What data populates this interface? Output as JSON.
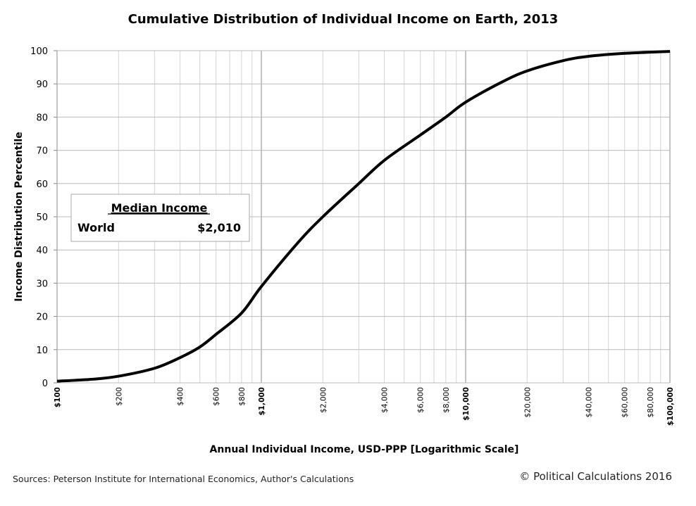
{
  "chart_data": {
    "type": "line",
    "title": "Cumulative Distribution of Individual Income on Earth, 2013",
    "xlabel": "Annual Individual Income, USD-PPP [Logarithmic Scale]",
    "ylabel": "Income Distribution Percentile",
    "x_scale": "log",
    "xlim": [
      100,
      100000
    ],
    "ylim": [
      0,
      100
    ],
    "grid": true,
    "y_ticks": [
      0,
      10,
      20,
      30,
      40,
      50,
      60,
      70,
      80,
      90,
      100
    ],
    "x_ticks": [
      {
        "value": 100,
        "label": "$100",
        "major": true
      },
      {
        "value": 200,
        "label": "$200"
      },
      {
        "value": 400,
        "label": "$400"
      },
      {
        "value": 600,
        "label": "$600"
      },
      {
        "value": 800,
        "label": "$800"
      },
      {
        "value": 1000,
        "label": "$1,000",
        "major": true
      },
      {
        "value": 2000,
        "label": "$2,000"
      },
      {
        "value": 4000,
        "label": "$4,000"
      },
      {
        "value": 6000,
        "label": "$6,000"
      },
      {
        "value": 8000,
        "label": "$8,000"
      },
      {
        "value": 10000,
        "label": "$10,000",
        "major": true
      },
      {
        "value": 20000,
        "label": "$20,000"
      },
      {
        "value": 40000,
        "label": "$40,000"
      },
      {
        "value": 60000,
        "label": "$60,000"
      },
      {
        "value": 80000,
        "label": "$80,000"
      },
      {
        "value": 100000,
        "label": "$100,000",
        "major": true
      }
    ],
    "series": [
      {
        "x": [
          100,
          150,
          200,
          300,
          400,
          500,
          600,
          800,
          1000,
          1500,
          2000,
          3000,
          4000,
          6000,
          8000,
          10000,
          15000,
          20000,
          30000,
          40000,
          60000,
          100000
        ],
        "y": [
          0.5,
          1.1,
          2,
          4.4,
          7.6,
          10.8,
          14.6,
          21,
          29,
          42,
          50,
          60,
          67,
          74.6,
          80,
          84.5,
          90.5,
          93.9,
          97,
          98.3,
          99.2,
          99.8
        ],
        "color": "#000000"
      }
    ],
    "annotation": {
      "title": "Median Income",
      "label": "World",
      "value": "$2,010"
    }
  },
  "footer": {
    "sources": "Sources: Peterson Institute for International Economics, Author's Calculations",
    "copyright": "© Political Calculations 2016"
  }
}
